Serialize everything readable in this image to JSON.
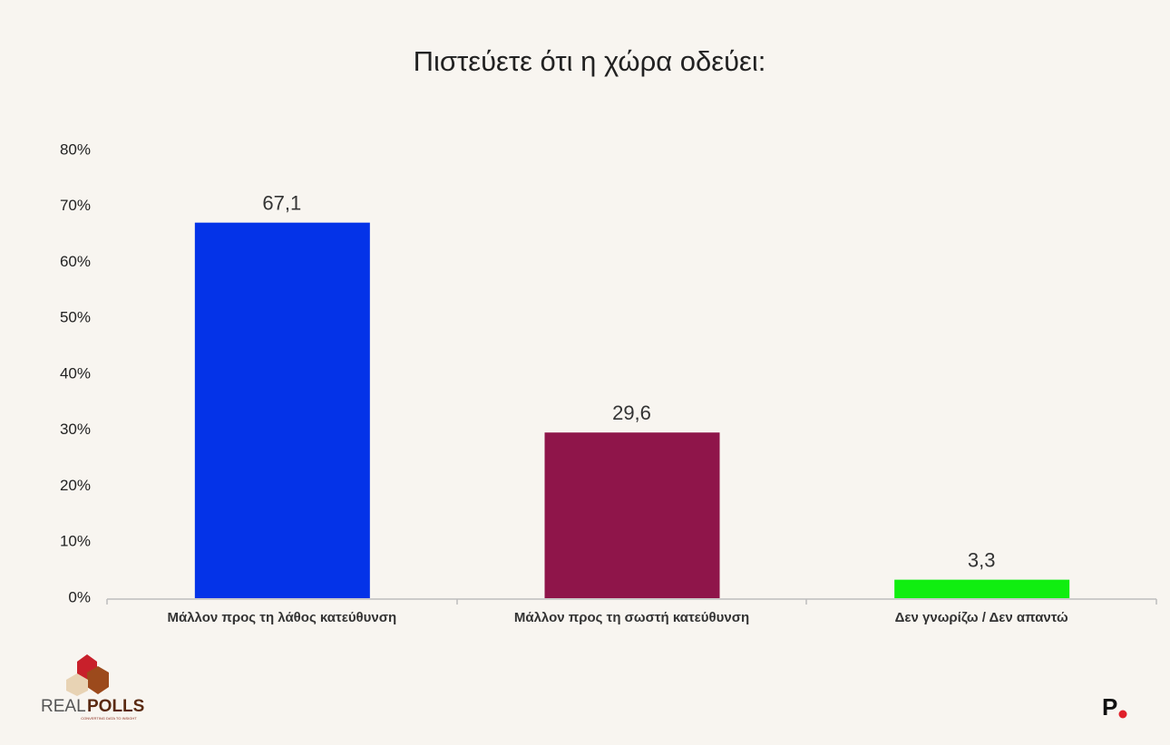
{
  "chart_data": {
    "type": "bar",
    "title": "Πιστεύετε ότι η χώρα οδεύει:",
    "categories": [
      "Μάλλον προς τη λάθος κατεύθυνση",
      "Μάλλον προς τη σωστή κατεύθυνση",
      "Δεν γνωρίζω /  Δεν απαντώ"
    ],
    "values": [
      67.1,
      29.6,
      3.3
    ],
    "value_labels": [
      "67,1",
      "29,6",
      "3,3"
    ],
    "colors": [
      "#0433e8",
      "#8f154a",
      "#10ee10"
    ],
    "ylim": [
      0,
      80
    ],
    "yticks": [
      {
        "value": 0,
        "label": "0%"
      },
      {
        "value": 10,
        "label": "10%"
      },
      {
        "value": 20,
        "label": "20%"
      },
      {
        "value": 30,
        "label": "30%"
      },
      {
        "value": 40,
        "label": "40%"
      },
      {
        "value": 50,
        "label": "50%"
      },
      {
        "value": 60,
        "label": "60%"
      },
      {
        "value": 70,
        "label": "70%"
      },
      {
        "value": 80,
        "label": "80%"
      }
    ],
    "grid": false
  },
  "branding": {
    "left_a": "REAL",
    "left_b": "POLLS",
    "left_tagline": "CONVERTING DATA TO INSIGHT",
    "right": "P"
  }
}
